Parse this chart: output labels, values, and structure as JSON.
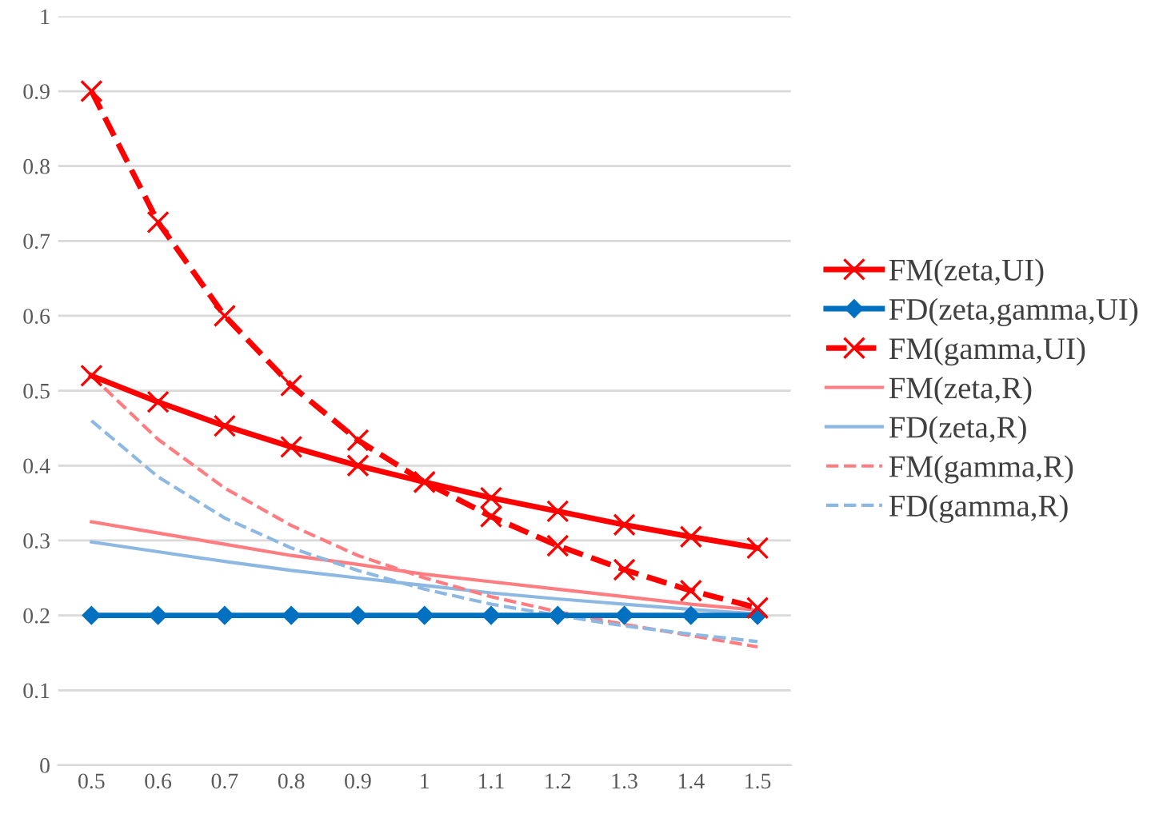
{
  "chart_data": {
    "type": "line",
    "categories": [
      "0.5",
      "0.6",
      "0.7",
      "0.8",
      "0.9",
      "1",
      "1.1",
      "1.2",
      "1.3",
      "1.4",
      "1.5"
    ],
    "ylim": [
      0,
      1
    ],
    "yticks": [
      0,
      0.1,
      0.2,
      0.3,
      0.4,
      0.5,
      0.6,
      0.7,
      0.8,
      0.9,
      1
    ],
    "grid": "y",
    "legend": "right",
    "series": [
      {
        "name": "FM(zeta,UI)",
        "color": "#ff0000",
        "marker": "cross",
        "line_style": "solid",
        "values": [
          0.52,
          0.485,
          0.453,
          0.425,
          0.4,
          0.378,
          0.357,
          0.339,
          0.321,
          0.305,
          0.29
        ]
      },
      {
        "name": "FD(zeta,gamma,UI)",
        "color": "#0070c0",
        "marker": "diamond",
        "line_style": "solid",
        "values": [
          0.2,
          0.2,
          0.2,
          0.2,
          0.2,
          0.2,
          0.2,
          0.2,
          0.2,
          0.2,
          0.2
        ]
      },
      {
        "name": "FM(gamma,UI)",
        "color": "#ff0000",
        "marker": "cross",
        "line_style": "dashed",
        "values": [
          0.9,
          0.725,
          0.6,
          0.507,
          0.434,
          0.378,
          0.332,
          0.293,
          0.261,
          0.233,
          0.21
        ]
      },
      {
        "name": "FM(zeta,R)",
        "color": "#ff7c80",
        "marker": "none",
        "line_style": "solid",
        "values": [
          0.325,
          0.31,
          0.295,
          0.28,
          0.268,
          0.255,
          0.245,
          0.235,
          0.225,
          0.215,
          0.207
        ]
      },
      {
        "name": "FD(zeta,R)",
        "color": "#8db8e2",
        "marker": "none",
        "line_style": "solid",
        "values": [
          0.298,
          0.285,
          0.272,
          0.26,
          0.25,
          0.24,
          0.23,
          0.222,
          0.215,
          0.208,
          0.202
        ]
      },
      {
        "name": "FM(gamma,R)",
        "color": "#ff7c80",
        "marker": "none",
        "line_style": "dashed",
        "values": [
          0.52,
          0.435,
          0.37,
          0.32,
          0.28,
          0.25,
          0.225,
          0.205,
          0.188,
          0.173,
          0.158
        ]
      },
      {
        "name": "FD(gamma,R)",
        "color": "#8db8e2",
        "marker": "none",
        "line_style": "dashed",
        "values": [
          0.46,
          0.385,
          0.33,
          0.29,
          0.26,
          0.235,
          0.215,
          0.2,
          0.186,
          0.175,
          0.165
        ]
      }
    ]
  }
}
